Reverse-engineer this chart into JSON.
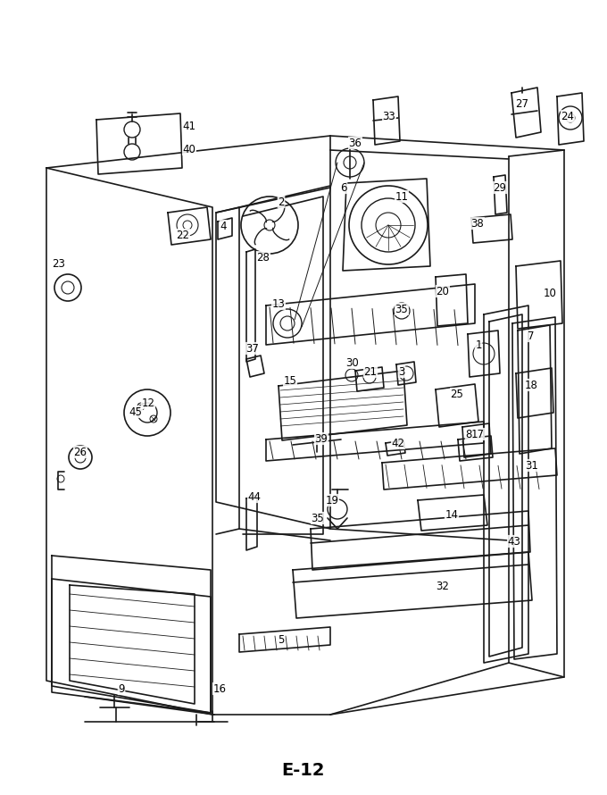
{
  "title": "",
  "page_label": "E-12",
  "background_color": "#ffffff",
  "line_color": "#1a1a1a",
  "fig_width": 6.8,
  "fig_height": 8.9,
  "dpi": 100
}
